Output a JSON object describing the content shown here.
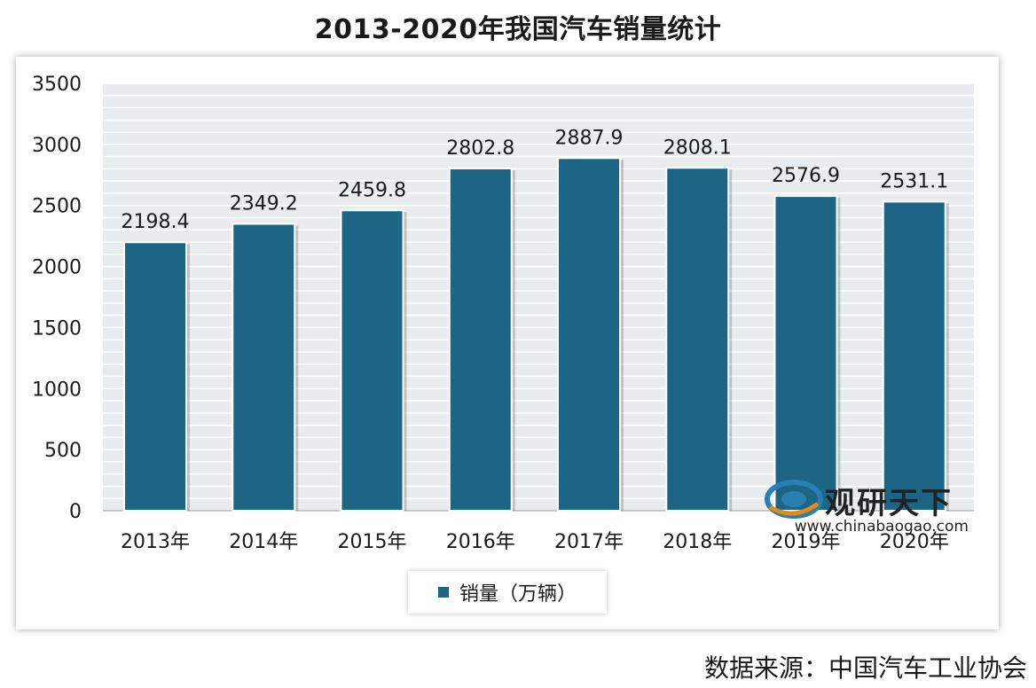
{
  "title": "2013-2020年我国汽车销量统计",
  "source": "数据来源：中国汽车工业协会",
  "legend": {
    "label": "销量（万辆）"
  },
  "watermark": {
    "name": "观研天下",
    "url": "www.chinabaogao.com"
  },
  "colors": {
    "bar": "#1d6585",
    "grid": "#c8cfd6",
    "plot_bg": "#e9ecef"
  },
  "chart_data": {
    "type": "bar",
    "title": "2013-2020年我国汽车销量统计",
    "xlabel": "",
    "ylabel": "",
    "categories": [
      "2013年",
      "2014年",
      "2015年",
      "2016年",
      "2017年",
      "2018年",
      "2019年",
      "2020年"
    ],
    "series": [
      {
        "name": "销量（万辆）",
        "values": [
          2198.4,
          2349.2,
          2459.8,
          2802.8,
          2887.9,
          2808.1,
          2576.9,
          2531.1
        ]
      }
    ],
    "data_labels": [
      "2198.4",
      "2349.2",
      "2459.8",
      "2802.8",
      "2887.9",
      "2808.1",
      "2576.9",
      "2531.1"
    ],
    "ylim": [
      0,
      3500
    ],
    "yticks": [
      "0",
      "500",
      "1000",
      "1500",
      "2000",
      "2500",
      "3000",
      "3500"
    ],
    "grid": true,
    "legend_position": "bottom"
  }
}
